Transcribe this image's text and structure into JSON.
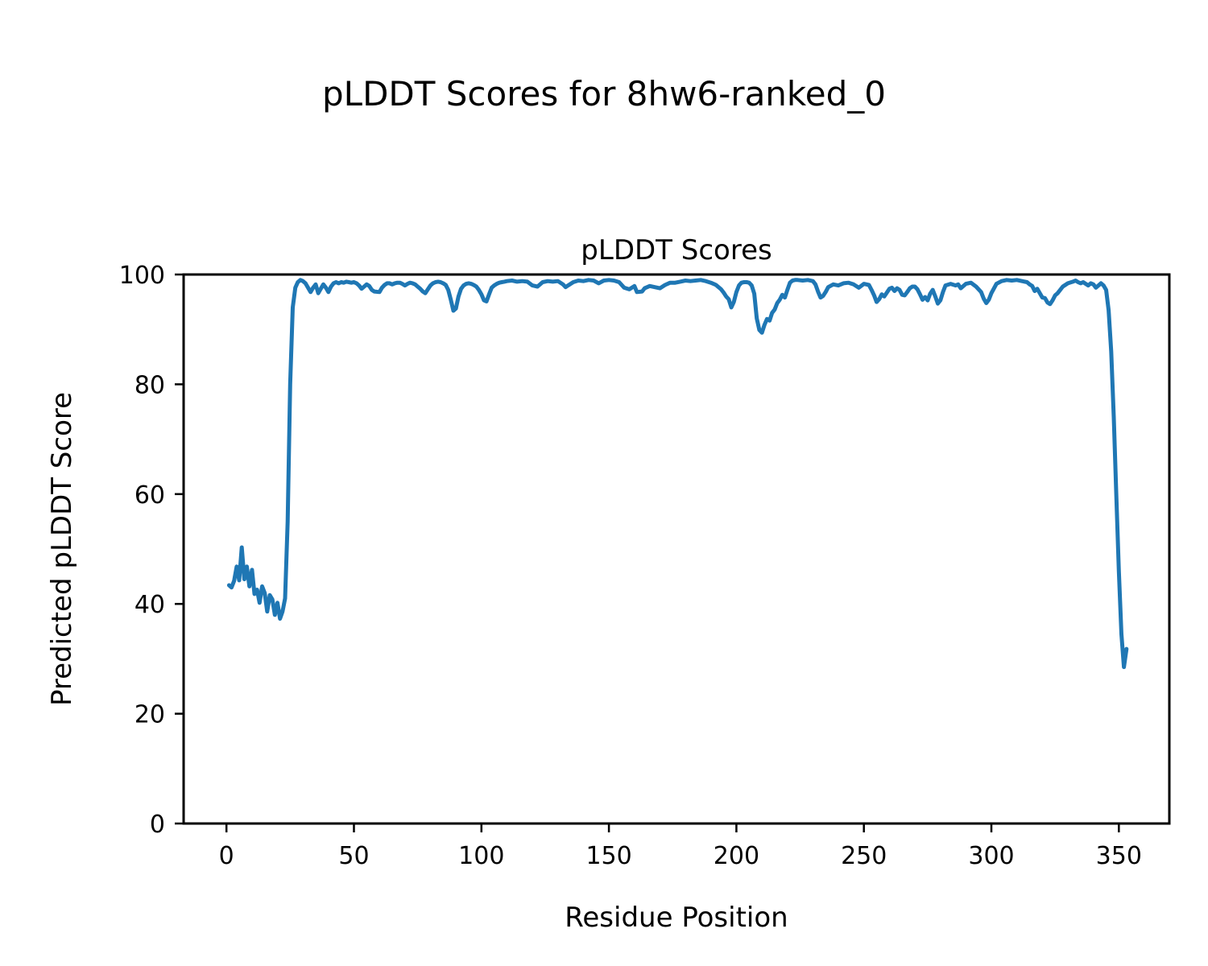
{
  "chart_data": {
    "type": "line",
    "suptitle": "pLDDT Scores for 8hw6-ranked_0",
    "title": "pLDDT Scores",
    "xlabel": "Residue Position",
    "ylabel": "Predicted pLDDT Score",
    "xlim": [
      -16.8,
      369.8
    ],
    "ylim": [
      0,
      100
    ],
    "xticks": [
      0,
      50,
      100,
      150,
      200,
      250,
      300,
      350
    ],
    "yticks": [
      0,
      20,
      40,
      60,
      80,
      100
    ],
    "grid": false,
    "legend": "none",
    "line_color": "#1f77b4",
    "series": [
      {
        "name": "pLDDT",
        "points": [
          [
            1,
            43.4
          ],
          [
            2,
            43.0
          ],
          [
            3,
            44.2
          ],
          [
            4,
            46.8
          ],
          [
            5,
            44.3
          ],
          [
            6,
            50.3
          ],
          [
            7,
            44.5
          ],
          [
            8,
            46.8
          ],
          [
            9,
            43.2
          ],
          [
            10,
            46.2
          ],
          [
            11,
            41.8
          ],
          [
            12,
            42.6
          ],
          [
            13,
            40.2
          ],
          [
            14,
            43.2
          ],
          [
            15,
            42.0
          ],
          [
            16,
            38.6
          ],
          [
            17,
            41.6
          ],
          [
            18,
            40.8
          ],
          [
            19,
            38.0
          ],
          [
            20,
            40.2
          ],
          [
            21,
            37.3
          ],
          [
            22,
            38.6
          ],
          [
            23,
            41.0
          ],
          [
            24,
            55.0
          ],
          [
            25,
            80.0
          ],
          [
            26,
            94.0
          ],
          [
            27,
            97.6
          ],
          [
            28,
            98.6
          ],
          [
            29,
            99.0
          ],
          [
            30,
            98.8
          ],
          [
            31,
            98.4
          ],
          [
            32,
            97.6
          ],
          [
            33,
            96.8
          ],
          [
            34,
            97.6
          ],
          [
            35,
            98.2
          ],
          [
            36,
            96.6
          ],
          [
            37,
            97.4
          ],
          [
            38,
            98.2
          ],
          [
            39,
            97.6
          ],
          [
            40,
            96.8
          ],
          [
            41,
            97.8
          ],
          [
            42,
            98.4
          ],
          [
            43,
            98.6
          ],
          [
            44,
            98.4
          ],
          [
            45,
            98.6
          ],
          [
            46,
            98.5
          ],
          [
            47,
            98.7
          ],
          [
            48,
            98.6
          ],
          [
            49,
            98.5
          ],
          [
            50,
            98.6
          ],
          [
            51,
            98.4
          ],
          [
            52,
            98.0
          ],
          [
            53,
            97.4
          ],
          [
            54,
            97.8
          ],
          [
            55,
            98.2
          ],
          [
            56,
            97.9
          ],
          [
            57,
            97.2
          ],
          [
            58,
            96.9
          ],
          [
            60,
            96.8
          ],
          [
            61,
            97.6
          ],
          [
            62,
            98.1
          ],
          [
            63,
            98.4
          ],
          [
            64,
            98.4
          ],
          [
            65,
            98.2
          ],
          [
            66,
            98.4
          ],
          [
            67,
            98.5
          ],
          [
            68,
            98.5
          ],
          [
            69,
            98.3
          ],
          [
            70,
            98.0
          ],
          [
            71,
            98.3
          ],
          [
            72,
            98.5
          ],
          [
            73,
            98.4
          ],
          [
            74,
            98.2
          ],
          [
            75,
            97.8
          ],
          [
            76,
            97.4
          ],
          [
            77,
            96.9
          ],
          [
            78,
            96.6
          ],
          [
            79,
            97.3
          ],
          [
            80,
            98.0
          ],
          [
            81,
            98.4
          ],
          [
            82,
            98.6
          ],
          [
            83,
            98.7
          ],
          [
            84,
            98.6
          ],
          [
            85,
            98.4
          ],
          [
            86,
            98.1
          ],
          [
            87,
            97.2
          ],
          [
            88,
            95.4
          ],
          [
            89,
            93.4
          ],
          [
            90,
            93.8
          ],
          [
            91,
            96.0
          ],
          [
            92,
            97.4
          ],
          [
            93,
            98.0
          ],
          [
            94,
            98.3
          ],
          [
            95,
            98.4
          ],
          [
            96,
            98.3
          ],
          [
            97,
            98.1
          ],
          [
            98,
            97.8
          ],
          [
            99,
            97.2
          ],
          [
            100,
            96.4
          ],
          [
            101,
            95.3
          ],
          [
            102,
            95.1
          ],
          [
            103,
            96.4
          ],
          [
            104,
            97.6
          ],
          [
            105,
            98.0
          ],
          [
            106,
            98.3
          ],
          [
            107,
            98.5
          ],
          [
            108,
            98.6
          ],
          [
            109,
            98.7
          ],
          [
            110,
            98.8
          ],
          [
            112,
            98.9
          ],
          [
            114,
            98.7
          ],
          [
            116,
            98.8
          ],
          [
            118,
            98.7
          ],
          [
            120,
            98.0
          ],
          [
            122,
            97.8
          ],
          [
            124,
            98.6
          ],
          [
            126,
            98.8
          ],
          [
            128,
            98.7
          ],
          [
            130,
            98.8
          ],
          [
            132,
            98.2
          ],
          [
            133,
            97.7
          ],
          [
            134,
            98.0
          ],
          [
            136,
            98.6
          ],
          [
            138,
            98.9
          ],
          [
            140,
            98.8
          ],
          [
            142,
            99.0
          ],
          [
            144,
            98.9
          ],
          [
            146,
            98.4
          ],
          [
            148,
            98.9
          ],
          [
            150,
            99.0
          ],
          [
            152,
            98.9
          ],
          [
            154,
            98.6
          ],
          [
            156,
            97.6
          ],
          [
            158,
            97.3
          ],
          [
            160,
            97.9
          ],
          [
            161,
            96.8
          ],
          [
            163,
            96.9
          ],
          [
            164,
            97.5
          ],
          [
            166,
            97.9
          ],
          [
            168,
            97.7
          ],
          [
            170,
            97.5
          ],
          [
            172,
            98.1
          ],
          [
            174,
            98.5
          ],
          [
            176,
            98.5
          ],
          [
            178,
            98.7
          ],
          [
            180,
            98.9
          ],
          [
            182,
            98.8
          ],
          [
            184,
            98.9
          ],
          [
            186,
            99.0
          ],
          [
            188,
            98.8
          ],
          [
            190,
            98.5
          ],
          [
            192,
            98.1
          ],
          [
            194,
            97.3
          ],
          [
            195,
            96.7
          ],
          [
            196,
            96.0
          ],
          [
            197,
            95.5
          ],
          [
            198,
            94.0
          ],
          [
            199,
            95.0
          ],
          [
            200,
            96.8
          ],
          [
            201,
            98.0
          ],
          [
            202,
            98.5
          ],
          [
            203,
            98.6
          ],
          [
            204,
            98.6
          ],
          [
            205,
            98.5
          ],
          [
            206,
            98.0
          ],
          [
            207,
            96.5
          ],
          [
            208,
            92.0
          ],
          [
            209,
            89.9
          ],
          [
            210,
            89.4
          ],
          [
            211,
            90.8
          ],
          [
            212,
            91.9
          ],
          [
            213,
            91.6
          ],
          [
            214,
            93.0
          ],
          [
            215,
            93.6
          ],
          [
            216,
            94.8
          ],
          [
            217,
            95.4
          ],
          [
            218,
            96.3
          ],
          [
            219,
            95.8
          ],
          [
            220,
            97.2
          ],
          [
            221,
            98.5
          ],
          [
            222,
            98.9
          ],
          [
            223,
            99.0
          ],
          [
            224,
            99.0
          ],
          [
            226,
            98.9
          ],
          [
            228,
            99.0
          ],
          [
            230,
            98.8
          ],
          [
            231,
            98.2
          ],
          [
            232,
            96.9
          ],
          [
            233,
            95.8
          ],
          [
            234,
            96.1
          ],
          [
            235,
            96.8
          ],
          [
            236,
            97.7
          ],
          [
            238,
            98.2
          ],
          [
            240,
            98.0
          ],
          [
            242,
            98.4
          ],
          [
            244,
            98.5
          ],
          [
            246,
            98.2
          ],
          [
            248,
            97.6
          ],
          [
            250,
            98.3
          ],
          [
            252,
            98.1
          ],
          [
            253,
            97.2
          ],
          [
            254,
            96.2
          ],
          [
            255,
            95.0
          ],
          [
            256,
            95.5
          ],
          [
            257,
            96.4
          ],
          [
            258,
            96.0
          ],
          [
            260,
            97.4
          ],
          [
            261,
            97.6
          ],
          [
            262,
            97.0
          ],
          [
            263,
            97.5
          ],
          [
            264,
            97.2
          ],
          [
            265,
            96.3
          ],
          [
            266,
            96.2
          ],
          [
            267,
            96.8
          ],
          [
            268,
            97.5
          ],
          [
            269,
            97.8
          ],
          [
            270,
            97.8
          ],
          [
            271,
            97.3
          ],
          [
            272,
            96.4
          ],
          [
            273,
            95.4
          ],
          [
            274,
            95.9
          ],
          [
            275,
            95.3
          ],
          [
            276,
            96.5
          ],
          [
            277,
            97.2
          ],
          [
            278,
            96.0
          ],
          [
            279,
            94.7
          ],
          [
            280,
            95.3
          ],
          [
            281,
            96.8
          ],
          [
            282,
            98.0
          ],
          [
            284,
            98.3
          ],
          [
            286,
            98.0
          ],
          [
            287,
            98.2
          ],
          [
            288,
            97.5
          ],
          [
            290,
            98.3
          ],
          [
            292,
            98.5
          ],
          [
            294,
            97.8
          ],
          [
            296,
            96.8
          ],
          [
            297,
            95.6
          ],
          [
            298,
            94.8
          ],
          [
            299,
            95.4
          ],
          [
            300,
            96.6
          ],
          [
            302,
            98.3
          ],
          [
            304,
            98.8
          ],
          [
            306,
            99.0
          ],
          [
            308,
            98.9
          ],
          [
            310,
            99.0
          ],
          [
            312,
            98.8
          ],
          [
            314,
            98.6
          ],
          [
            315,
            98.2
          ],
          [
            316,
            97.9
          ],
          [
            317,
            97.0
          ],
          [
            318,
            97.4
          ],
          [
            319,
            96.6
          ],
          [
            320,
            95.8
          ],
          [
            321,
            95.7
          ],
          [
            322,
            94.9
          ],
          [
            323,
            94.6
          ],
          [
            324,
            95.3
          ],
          [
            325,
            96.2
          ],
          [
            326,
            96.6
          ],
          [
            328,
            97.8
          ],
          [
            330,
            98.4
          ],
          [
            332,
            98.7
          ],
          [
            333,
            98.9
          ],
          [
            334,
            98.6
          ],
          [
            335,
            98.4
          ],
          [
            336,
            98.6
          ],
          [
            337,
            98.3
          ],
          [
            338,
            98.0
          ],
          [
            339,
            98.4
          ],
          [
            340,
            98.2
          ],
          [
            341,
            97.6
          ],
          [
            342,
            98.0
          ],
          [
            343,
            98.4
          ],
          [
            344,
            98.0
          ],
          [
            345,
            97.2
          ],
          [
            346,
            93.5
          ],
          [
            347,
            86.0
          ],
          [
            348,
            74.0
          ],
          [
            349,
            60.0
          ],
          [
            350,
            46.0
          ],
          [
            351,
            34.5
          ],
          [
            352,
            28.5
          ],
          [
            353,
            31.8
          ]
        ]
      }
    ]
  }
}
